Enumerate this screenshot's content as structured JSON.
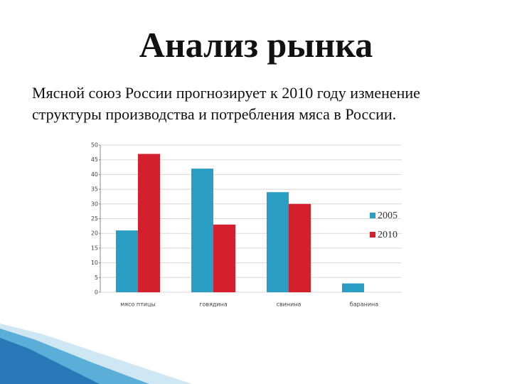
{
  "chart_data": {
    "type": "bar",
    "title": "Анализ рынка",
    "subtitle": [
      "Мясной союз России прогнозирует к 2010 году изменение",
      "структуры производства и потребления мяса в России."
    ],
    "categories": [
      "мясо птицы",
      "говядина",
      "свинина",
      "баранина"
    ],
    "series": [
      {
        "name": "2005",
        "color": "#2b9ec3",
        "values": [
          21,
          42,
          34,
          3
        ]
      },
      {
        "name": "2010",
        "color": "#d41f2c",
        "values": [
          47,
          23,
          30,
          0
        ]
      }
    ],
    "ylim": [
      0,
      50
    ],
    "yticks": [
      0,
      5,
      10,
      15,
      20,
      25,
      30,
      35,
      40,
      45,
      50
    ],
    "grid": true,
    "legend": "right"
  }
}
